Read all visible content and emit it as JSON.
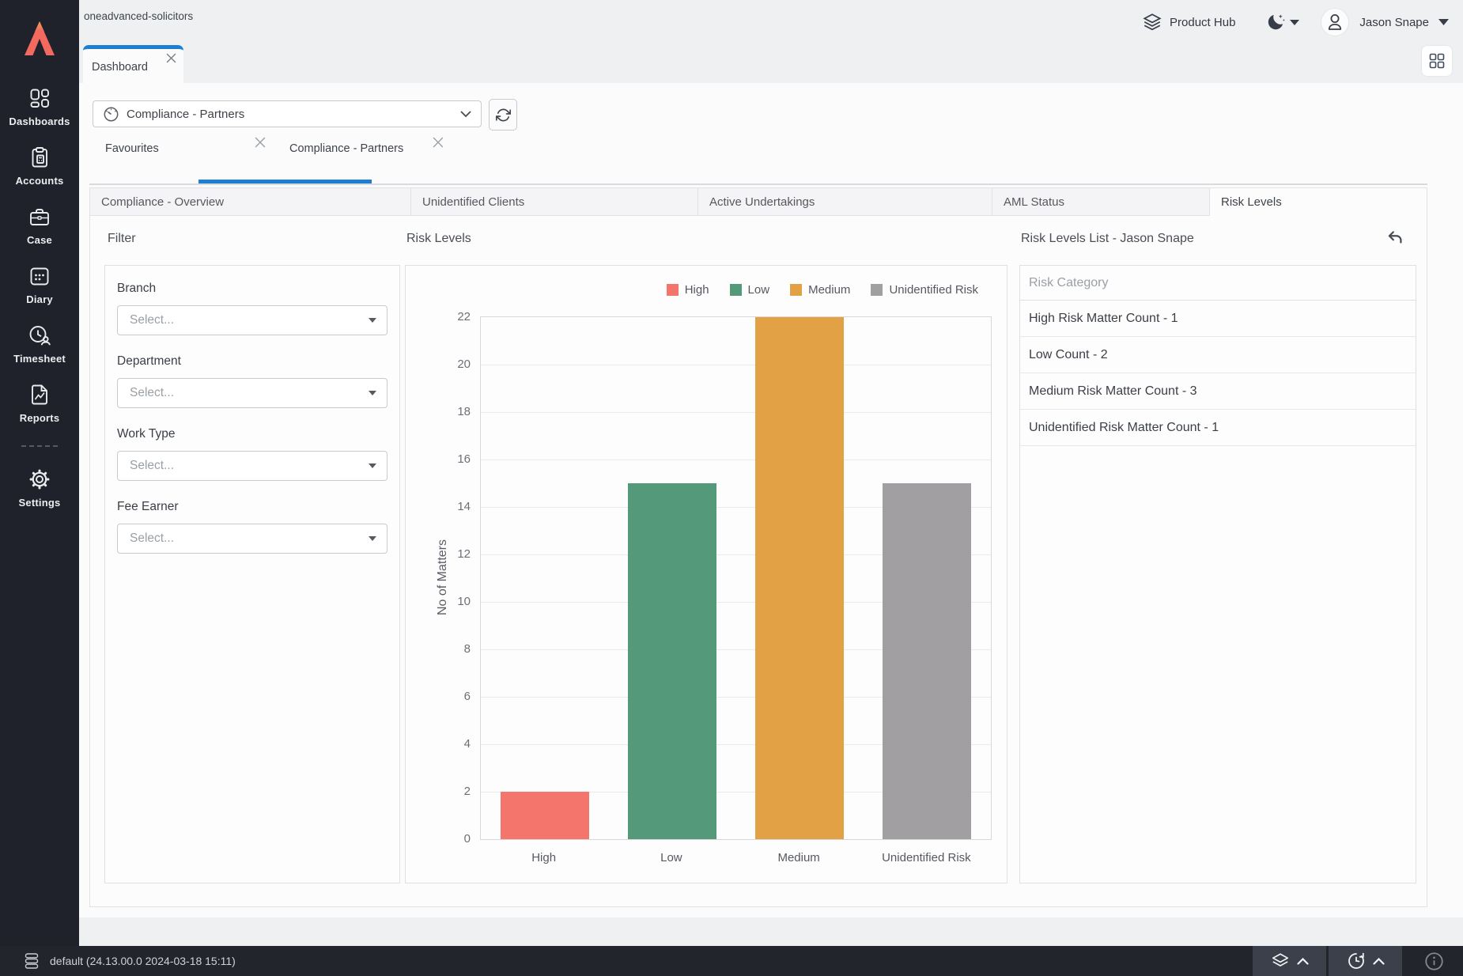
{
  "topbar": {
    "workspace": "oneadvanced-solicitors",
    "product_hub_label": "Product Hub",
    "user_name": "Jason Snape"
  },
  "sidebar": {
    "items": [
      {
        "label": "Dashboards",
        "icon": "dashboards-icon"
      },
      {
        "label": "Accounts",
        "icon": "accounts-icon"
      },
      {
        "label": "Case",
        "icon": "case-icon"
      },
      {
        "label": "Diary",
        "icon": "diary-icon"
      },
      {
        "label": "Timesheet",
        "icon": "timesheet-icon"
      },
      {
        "label": "Reports",
        "icon": "reports-icon"
      }
    ],
    "settings": {
      "label": "Settings",
      "icon": "settings-icon"
    }
  },
  "window_tab": {
    "label": "Dashboard"
  },
  "dashboard_selector": {
    "value": "Compliance - Partners",
    "icon": "gauge-icon"
  },
  "sub_tabs": [
    {
      "label": "Favourites",
      "active": false
    },
    {
      "label": "Compliance - Partners",
      "active": true
    }
  ],
  "widget_tabs": [
    {
      "label": "Compliance - Overview",
      "active": false
    },
    {
      "label": "Unidentified Clients",
      "active": false
    },
    {
      "label": "Active Undertakings",
      "active": false
    },
    {
      "label": "AML Status",
      "active": false
    },
    {
      "label": "Risk Levels",
      "active": true
    }
  ],
  "filter": {
    "title": "Filter",
    "fields": [
      {
        "label": "Branch",
        "placeholder": "Select..."
      },
      {
        "label": "Department",
        "placeholder": "Select..."
      },
      {
        "label": "Work Type",
        "placeholder": "Select..."
      },
      {
        "label": "Fee Earner",
        "placeholder": "Select..."
      }
    ]
  },
  "chart_section_title": "Risk Levels",
  "chart_data": {
    "type": "bar",
    "title": "Risk Levels",
    "categories": [
      "High",
      "Low",
      "Medium",
      "Unidentified Risk"
    ],
    "values": [
      2,
      15,
      22,
      15
    ],
    "colors": [
      "#f4756c",
      "#53997a",
      "#e1a144",
      "#a29fa2"
    ],
    "legend": [
      "High",
      "Low",
      "Medium",
      "Unidentified Risk"
    ],
    "legend_position": "top-right",
    "xlabel": "",
    "ylabel": "No of Matters",
    "ylim": [
      0,
      22
    ],
    "ytick_step": 2,
    "grid": true
  },
  "risk_list": {
    "title": "Risk Levels List - Jason Snape",
    "column_header": "Risk Category",
    "rows": [
      "High Risk Matter Count - 1",
      "Low Count - 2",
      "Medium Risk Matter Count - 3",
      "Unidentified Risk Matter Count - 1"
    ]
  },
  "statusbar": {
    "environment": "default (24.13.00.0 2024-03-18 15:11)"
  },
  "colors": {
    "accent_blue": "#1e7fd2",
    "sidebar_bg": "#1f222a",
    "statusbar_bg": "#22252c",
    "logo_coral": "#f2695f",
    "high": "#f4756c",
    "low": "#53997a",
    "medium": "#e1a144",
    "unidentified_risk": "#a29fa2"
  }
}
